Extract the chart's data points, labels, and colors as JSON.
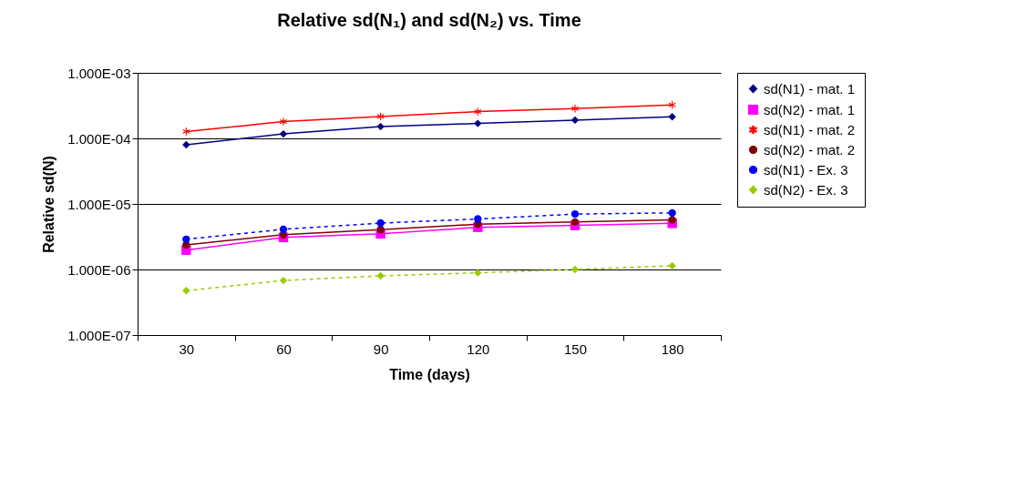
{
  "chart_data": {
    "type": "line",
    "title": "Relative sd(N₁) and sd(N₂) vs. Time",
    "xlabel": "Time (days)",
    "ylabel": "Relative sd(N)",
    "categories": [
      "30",
      "60",
      "90",
      "120",
      "150",
      "180"
    ],
    "log": "y",
    "ylim": [
      1e-07,
      0.001
    ],
    "yticks": [
      {
        "value": 1e-07,
        "label": "1.000E-07"
      },
      {
        "value": 1e-06,
        "label": "1.000E-06"
      },
      {
        "value": 1e-05,
        "label": "1.000E-05"
      },
      {
        "value": 0.0001,
        "label": "1.000E-04"
      },
      {
        "value": 0.001,
        "label": "1.000E-03"
      }
    ],
    "grid": "y",
    "legend": "right",
    "line_style": "solid",
    "series": [
      {
        "name": "sd(N1) - mat. 1",
        "color": "#000080",
        "marker": "diamond",
        "values": [
          8e-05,
          0.000117,
          0.000151,
          0.000169,
          0.00019,
          0.000214
        ]
      },
      {
        "name": "sd(N2) - mat. 1",
        "color": "#ff00ff",
        "marker": "square",
        "values": [
          1.97e-06,
          3.08e-06,
          3.5e-06,
          4.4e-06,
          4.7e-06,
          5.05e-06
        ]
      },
      {
        "name": "sd(N1) - mat. 2",
        "color": "#ff0000",
        "marker": "cross",
        "values": [
          0.000127,
          0.00018,
          0.000216,
          0.000256,
          0.000285,
          0.000324
        ]
      },
      {
        "name": "sd(N2) - mat. 2",
        "color": "#800000",
        "marker": "circle",
        "values": [
          2.37e-06,
          3.4e-06,
          4.05e-06,
          4.9e-06,
          5.3e-06,
          5.7e-06
        ]
      },
      {
        "name": "sd(N1) - Ex. 3",
        "color": "#0000ff",
        "marker": "circle",
        "line_style": "dashed",
        "values": [
          2.89e-06,
          4.1e-06,
          5.1e-06,
          5.9e-06,
          7e-06,
          7.3e-06
        ]
      },
      {
        "name": "sd(N2) - Ex. 3",
        "color": "#99cc00",
        "marker": "diamond",
        "line_style": "dashed",
        "values": [
          4.75e-07,
          6.8e-07,
          8e-07,
          8.9e-07,
          1e-06,
          1.14e-06
        ]
      }
    ]
  }
}
